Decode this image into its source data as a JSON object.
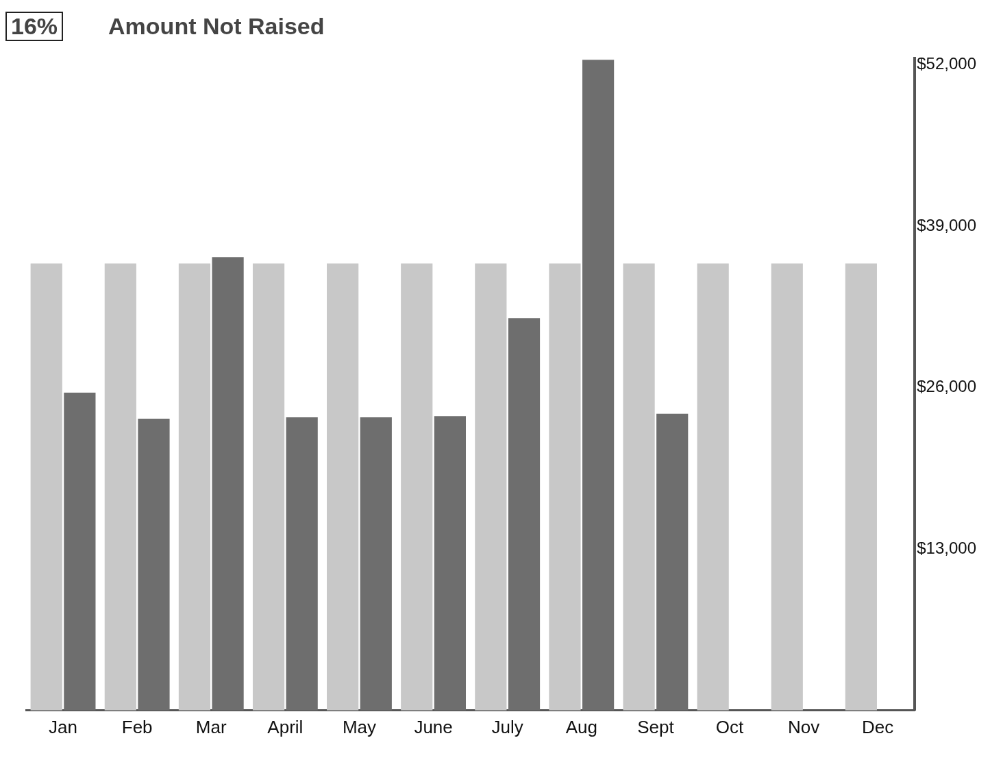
{
  "chart_data": {
    "type": "bar",
    "annotations": [
      "16%",
      "Amount Not Raised"
    ],
    "categories": [
      "Jan",
      "Feb",
      "Mar",
      "April",
      "May",
      "June",
      "July",
      "Aug",
      "Sept",
      "Oct",
      "Nov",
      "Dec"
    ],
    "series": [
      {
        "color": "#c8c8c8",
        "values": [
          36000,
          36000,
          36000,
          36000,
          36000,
          36000,
          36000,
          36000,
          36000,
          36000,
          36000,
          36000
        ]
      },
      {
        "color": "#6e6e6e",
        "values": [
          25600,
          23500,
          36500,
          23600,
          23600,
          23700,
          31600,
          52400,
          23900,
          null,
          null,
          null
        ]
      }
    ],
    "ylim": [
      0,
      52500
    ],
    "yticks": [
      {
        "value": 13000,
        "label": "$13,000"
      },
      {
        "value": 26000,
        "label": "$26,000"
      },
      {
        "value": 39000,
        "label": "$39,000"
      },
      {
        "value": 52000,
        "label": "$52,000"
      }
    ],
    "grid": false,
    "legend": false
  }
}
